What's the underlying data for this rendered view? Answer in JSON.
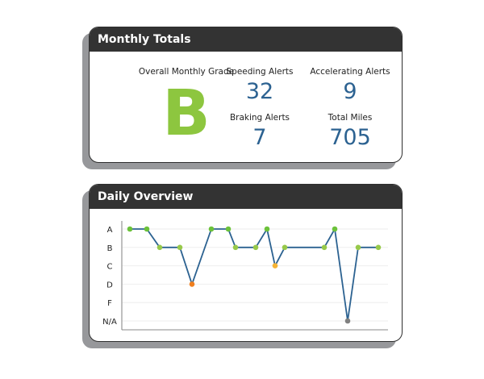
{
  "monthly": {
    "title": "Monthly Totals",
    "grade_label": "Overall Monthly Grade",
    "grade": "B",
    "speeding_label": "Speeding Alerts",
    "speeding": "32",
    "accelerating_label": "Accelerating Alerts",
    "accelerating": "9",
    "braking_label": "Braking Alerts",
    "braking": "7",
    "miles_label": "Total Miles",
    "miles": "705"
  },
  "daily": {
    "title": "Daily Overview"
  },
  "colors": {
    "line": "#2c6291",
    "A": "#6cc23a",
    "B": "#97c94a",
    "C": "#f5b335",
    "D": "#f07f1f",
    "N/A": "#808080",
    "grade": "#8dc63f",
    "value": "#2c6291"
  },
  "chart_data": {
    "type": "line",
    "y_categories": [
      "A",
      "B",
      "C",
      "D",
      "F",
      "N/A"
    ],
    "x": [
      0,
      2.1,
      3.7,
      6.2,
      7.7,
      10.1,
      12.2,
      13.1,
      15.6,
      17,
      18,
      19.2,
      24.1,
      25.4,
      27,
      28.3,
      30.8
    ],
    "values": [
      "A",
      "A",
      "B",
      "B",
      "D",
      "A",
      "A",
      "B",
      "B",
      "A",
      "C",
      "B",
      "B",
      "A",
      "N/A",
      "B",
      "B"
    ],
    "xlim": [
      -1,
      32
    ],
    "grid": true,
    "title": "",
    "xlabel": "",
    "ylabel": ""
  }
}
